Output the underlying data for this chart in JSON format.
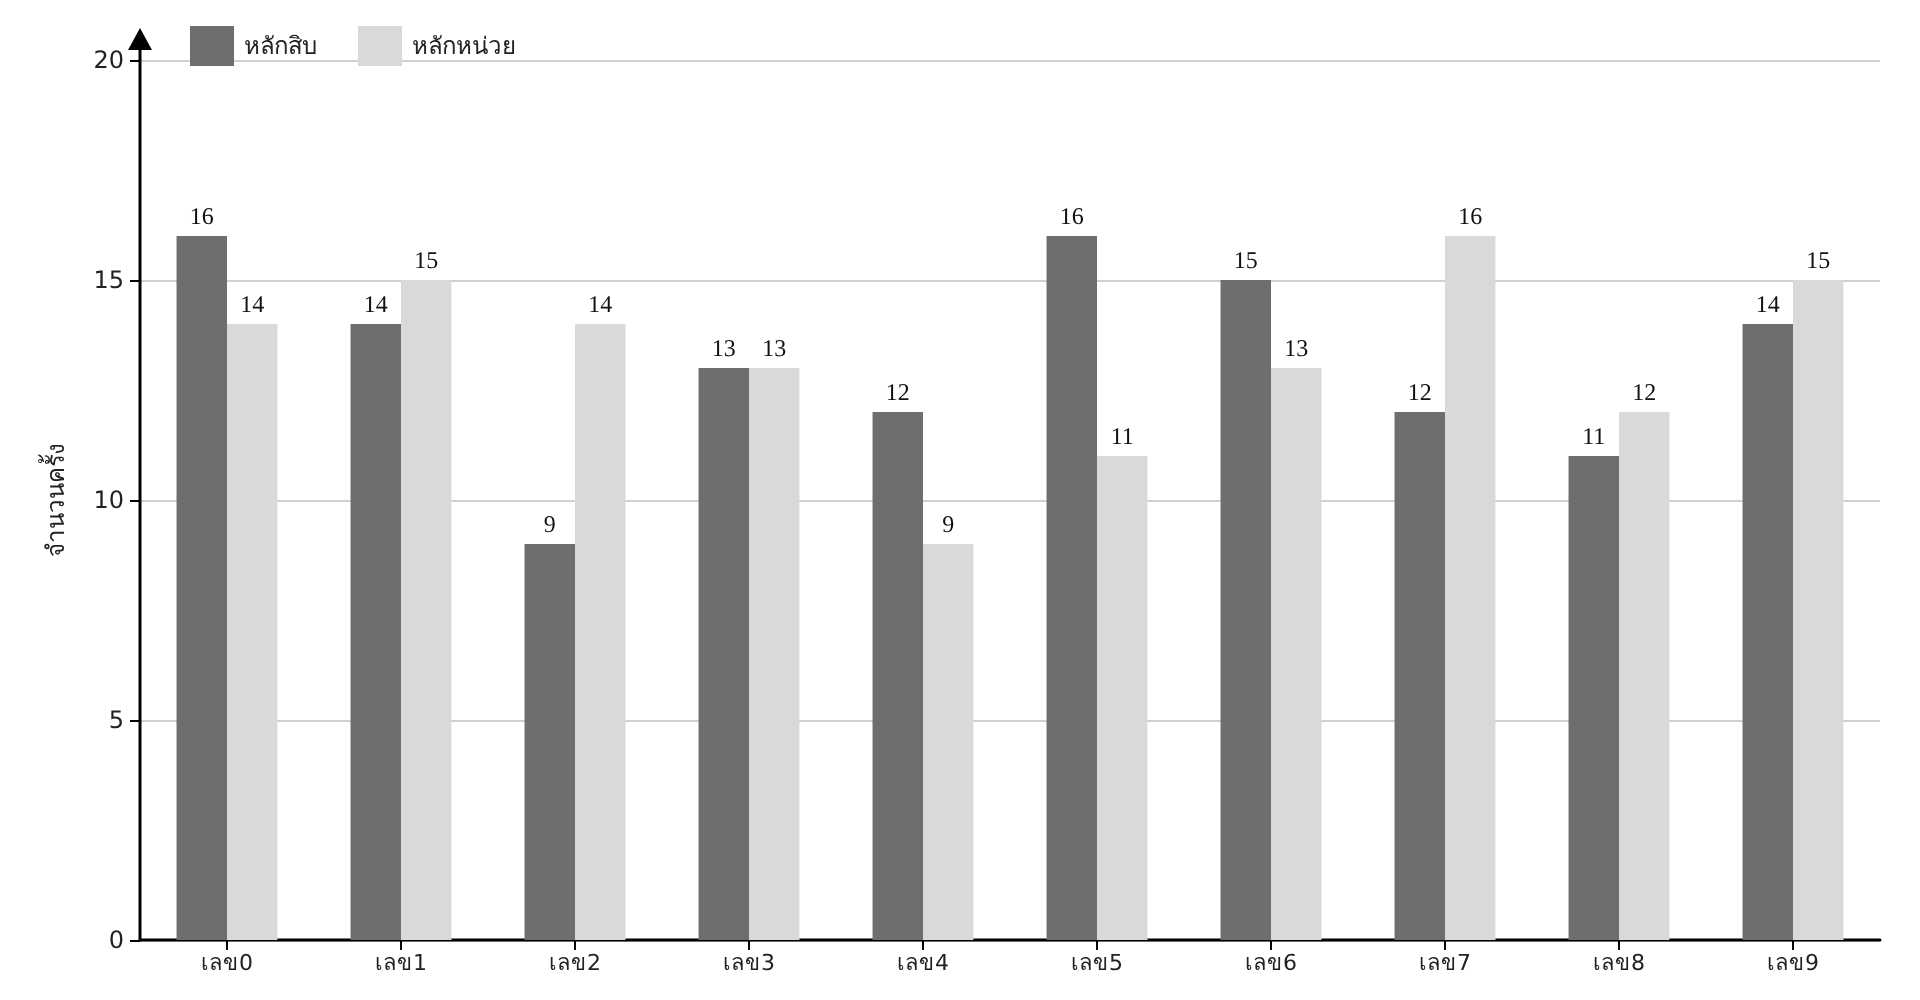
{
  "chart_data": {
    "type": "bar",
    "ylabel": "จำนวนครั้ง",
    "categories": [
      "เลข0",
      "เลข1",
      "เลข2",
      "เลข3",
      "เลข4",
      "เลข5",
      "เลข6",
      "เลข7",
      "เลข8",
      "เลข9"
    ],
    "series": [
      {
        "name": "หลักสิบ",
        "color": "#6d6e70",
        "values": [
          16,
          14,
          9,
          13,
          12,
          16,
          15,
          12,
          11,
          14
        ]
      },
      {
        "name": "หลักหน่วย",
        "color": "#d9d9d9",
        "values": [
          14,
          15,
          14,
          13,
          9,
          11,
          13,
          16,
          12,
          15
        ]
      }
    ],
    "ylim": [
      0,
      20
    ],
    "yticks": [
      0,
      5,
      10,
      15,
      20
    ],
    "grid": "y",
    "legend": "top left",
    "data_labels": true
  }
}
